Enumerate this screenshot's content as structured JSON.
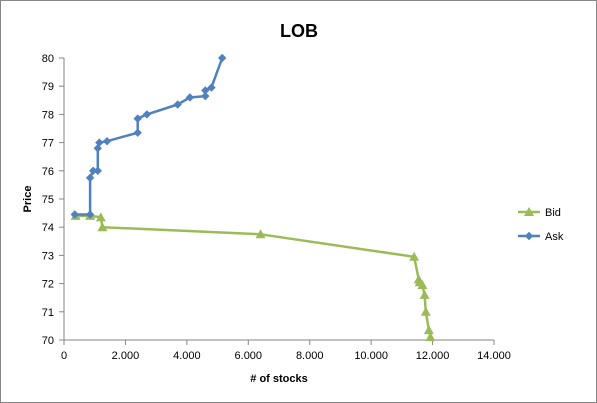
{
  "chart_data": {
    "type": "line",
    "title": "LOB",
    "xlabel": "# of stocks",
    "ylabel": "Price",
    "xlim": [
      0,
      14000
    ],
    "ylim": [
      70,
      80
    ],
    "x_ticks": [
      "0",
      "2.000",
      "4.000",
      "6.000",
      "8.000",
      "10.000",
      "12.000",
      "14.000"
    ],
    "y_ticks": [
      "70",
      "71",
      "72",
      "73",
      "74",
      "75",
      "76",
      "77",
      "78",
      "79",
      "80"
    ],
    "grid": false,
    "legend_position": "right",
    "series": [
      {
        "name": "Bid",
        "color": "#9bbb59",
        "marker": "triangle",
        "x": [
          11930,
          11880,
          11780,
          11740,
          11670,
          11580,
          11550,
          11400,
          6400,
          1250,
          1200,
          850,
          380
        ],
        "y": [
          70.1,
          70.35,
          71.0,
          71.6,
          71.95,
          72.05,
          72.15,
          72.95,
          73.75,
          74.0,
          74.35,
          74.4,
          74.4
        ]
      },
      {
        "name": "Ask",
        "color": "#4f81bd",
        "marker": "diamond",
        "x": [
          350,
          850,
          850,
          950,
          1100,
          1100,
          1150,
          1400,
          2400,
          2400,
          2700,
          3700,
          4100,
          4600,
          4600,
          4800,
          5150
        ],
        "y": [
          74.45,
          74.45,
          75.75,
          76.0,
          76.0,
          76.8,
          77.0,
          77.05,
          77.35,
          77.85,
          78.0,
          78.35,
          78.6,
          78.65,
          78.85,
          78.95,
          80.0
        ]
      }
    ]
  }
}
